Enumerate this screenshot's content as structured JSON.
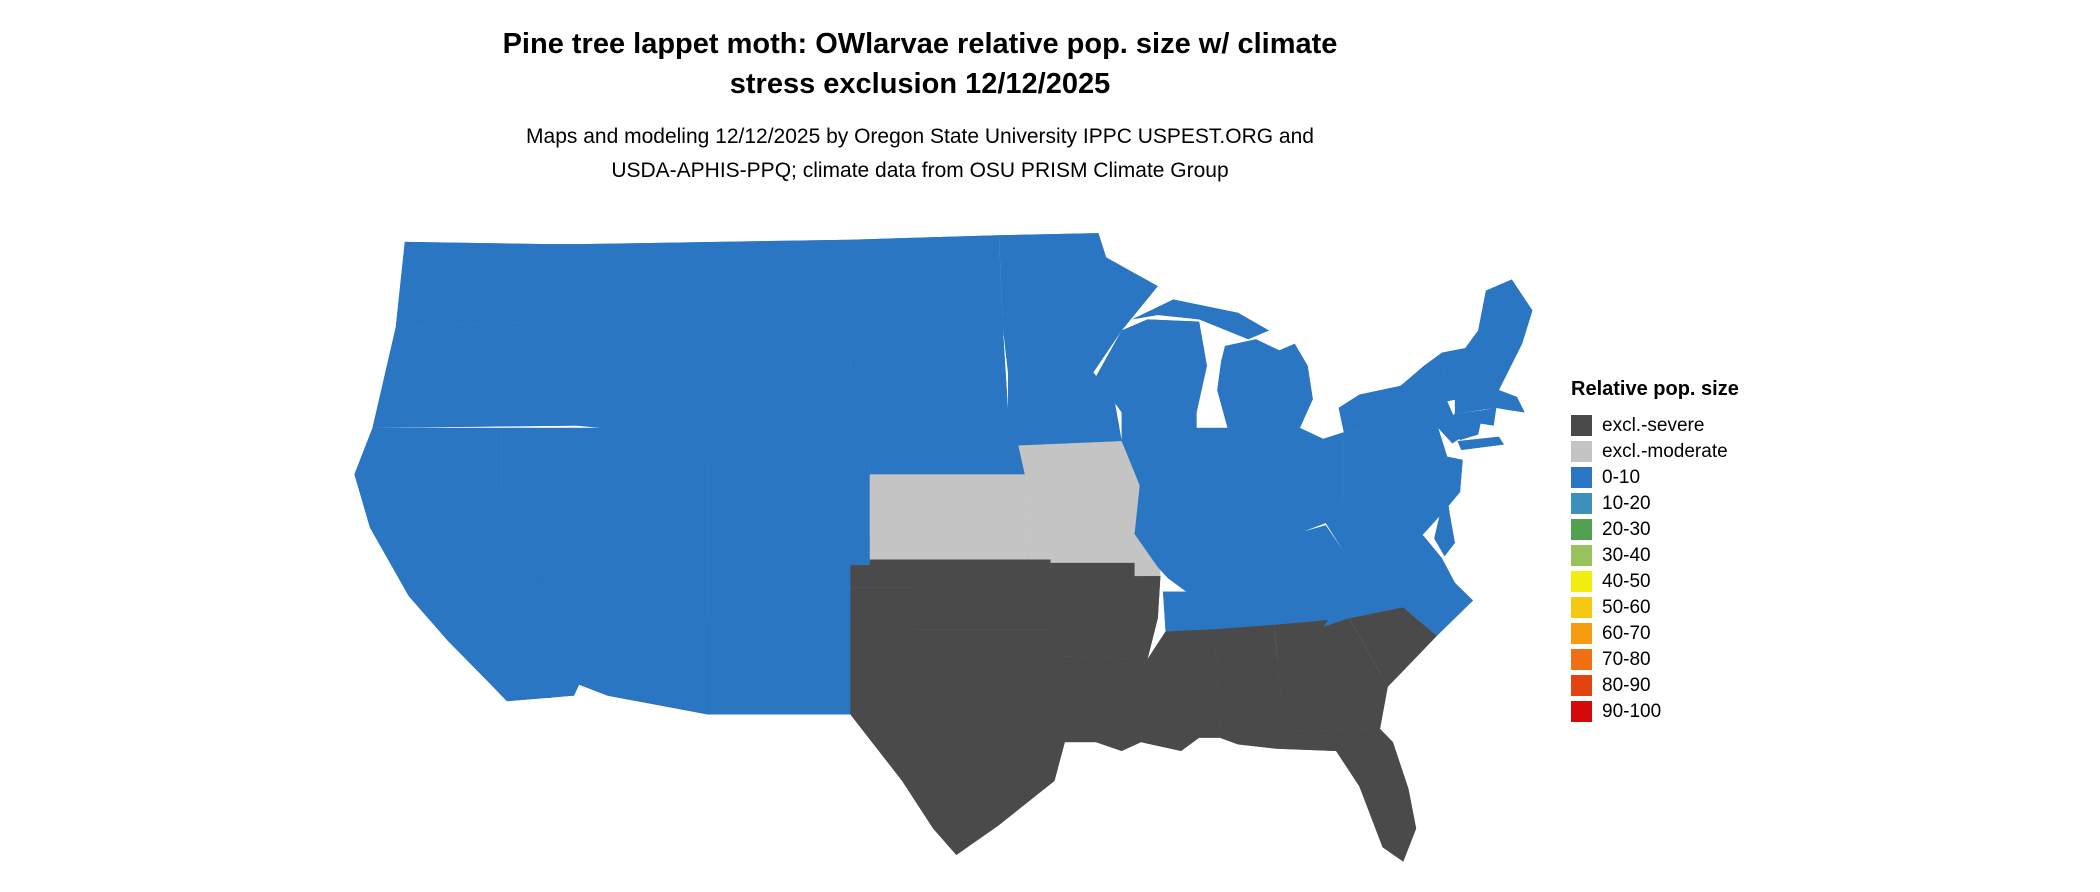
{
  "title": {
    "line1": "Pine tree lappet moth: OWlarvae relative pop. size w/ climate",
    "line2": "stress exclusion 12/12/2025"
  },
  "subtitle": {
    "line1": "Maps and modeling 12/12/2025 by Oregon State University IPPC USPEST.ORG and",
    "line2": "USDA-APHIS-PPQ; climate data from OSU PRISM Climate Group"
  },
  "legend": {
    "title": "Relative pop. size",
    "items": [
      {
        "label": "excl.-severe",
        "color": "#4a4a4a"
      },
      {
        "label": "excl.-moderate",
        "color": "#c4c4c4"
      },
      {
        "label": "0-10",
        "color": "#2b76c2"
      },
      {
        "label": "10-20",
        "color": "#3d8fbd"
      },
      {
        "label": "20-30",
        "color": "#52a052"
      },
      {
        "label": "30-40",
        "color": "#97c25c"
      },
      {
        "label": "40-50",
        "color": "#f2ee0f"
      },
      {
        "label": "50-60",
        "color": "#f4c810"
      },
      {
        "label": "60-70",
        "color": "#f59c10"
      },
      {
        "label": "70-80",
        "color": "#ee7012"
      },
      {
        "label": "80-90",
        "color": "#e2440f"
      },
      {
        "label": "90-100",
        "color": "#d40a0a"
      }
    ]
  },
  "map": {
    "category_colors": {
      "excl.-severe": "#4a4a4a",
      "excl.-moderate": "#c4c4c4",
      "0-10": "#2b76c2"
    },
    "region_categories": {
      "WA": "0-10",
      "OR": "0-10",
      "CA": "0-10",
      "NV": "0-10",
      "ID": "0-10",
      "MT": "0-10",
      "WY": "0-10",
      "UT": "0-10",
      "CO": "0-10",
      "AZ": "0-10",
      "NM": "0-10",
      "ND": "0-10",
      "SD": "0-10",
      "NE": "0-10",
      "KS": "excl.-moderate",
      "OK": "excl.-severe",
      "TX": "excl.-severe",
      "MN": "0-10",
      "IA": "0-10",
      "MO": "excl.-moderate",
      "AR": "excl.-severe",
      "LA": "excl.-severe",
      "WI": "0-10",
      "IL": "0-10",
      "MI": "0-10",
      "IN": "0-10",
      "OH": "0-10",
      "KY": "0-10",
      "TN": "0-10",
      "MS": "excl.-severe",
      "AL": "excl.-severe",
      "GA": "excl.-severe",
      "FL": "excl.-severe",
      "SC": "excl.-severe",
      "NC": "0-10",
      "VA": "0-10",
      "WV": "0-10",
      "MD": "0-10",
      "DE": "0-10",
      "PA": "0-10",
      "NJ": "0-10",
      "NY": "0-10",
      "CT": "0-10",
      "RI": "0-10",
      "MA": "0-10",
      "VT": "0-10",
      "NH": "0-10",
      "ME": "0-10"
    }
  }
}
